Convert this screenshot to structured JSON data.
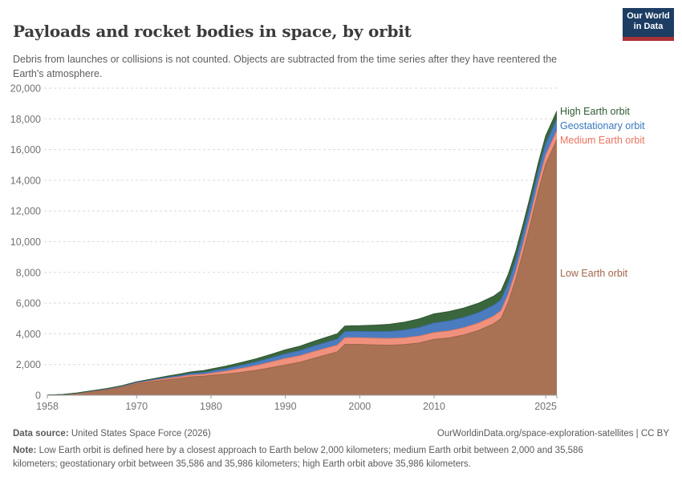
{
  "header": {
    "title": "Payloads and rocket bodies in space, by orbit",
    "subtitle": "Debris from launches or collisions is not counted. Objects are subtracted from the time series after they have reentered the Earth's atmosphere.",
    "logo": {
      "line1": "Our World",
      "line2": "in Data",
      "background_color": "#1d3d63",
      "bar_color": "#a93236"
    }
  },
  "footer": {
    "source_label": "Data source:",
    "source_text": " United States Space Force (2026)",
    "attribution": "OurWorldinData.org/space-exploration-satellites | CC BY",
    "note_label": "Note:",
    "note_text": " Low Earth orbit is defined here by a closest approach to Earth below 2,000 kilometers; medium Earth orbit between 2,000 and 35,586 kilometers; geostationary orbit between 35,586 and 35,986 kilometers; high Earth orbit above 35,986 kilometers."
  },
  "chart_data": {
    "type": "area",
    "stacked": true,
    "title": "Payloads and rocket bodies in space, by orbit",
    "xlabel": "",
    "ylabel": "",
    "xlim": [
      1958,
      2026.5
    ],
    "ylim": [
      0,
      20000
    ],
    "grid": "dashed-horizontal",
    "legend_position": "right-of-plot",
    "x": [
      1958,
      1960,
      1962,
      1964,
      1966,
      1968,
      1970,
      1972,
      1974,
      1976,
      1977,
      1978,
      1979,
      1980,
      1982,
      1984,
      1986,
      1988,
      1990,
      1992,
      1994,
      1996,
      1997,
      1998,
      1999,
      2000,
      2002,
      2004,
      2006,
      2008,
      2010,
      2012,
      2014,
      2016,
      2018,
      2019,
      2020,
      2021,
      2022,
      2023,
      2024,
      2025,
      2026.5
    ],
    "series": [
      {
        "name": "Low Earth orbit",
        "color": "#A97255",
        "edge_color": "#9A6548",
        "label_color": "#A2654C",
        "values": [
          10,
          35,
          125,
          235,
          360,
          520,
          740,
          870,
          1000,
          1110,
          1180,
          1220,
          1240,
          1300,
          1380,
          1490,
          1620,
          1790,
          1970,
          2150,
          2430,
          2700,
          2830,
          3310,
          3315,
          3310,
          3280,
          3260,
          3300,
          3410,
          3640,
          3735,
          3930,
          4225,
          4655,
          5000,
          6095,
          7590,
          9380,
          11275,
          13265,
          15055,
          16645
        ]
      },
      {
        "name": "Medium Earth orbit",
        "color": "#F0917E",
        "edge_color": "#E87B61",
        "label_color": "#EC7360",
        "values": [
          0,
          5,
          10,
          25,
          40,
          50,
          60,
          72,
          84,
          96,
          102,
          108,
          114,
          120,
          180,
          240,
          300,
          360,
          420,
          425,
          430,
          430,
          430,
          430,
          430,
          430,
          432,
          434,
          436,
          438,
          440,
          450,
          460,
          475,
          495,
          505,
          515,
          525,
          540,
          550,
          560,
          570,
          580
        ]
      },
      {
        "name": "Geostationary orbit",
        "color": "#4C7CC0",
        "edge_color": "#3D6FB3",
        "label_color": "#3877BF",
        "values": [
          0,
          0,
          5,
          10,
          15,
          22,
          30,
          50,
          68,
          90,
          100,
          110,
          120,
          140,
          170,
          200,
          235,
          268,
          300,
          330,
          360,
          385,
          392,
          400,
          405,
          410,
          430,
          460,
          500,
          560,
          620,
          650,
          670,
          685,
          700,
          705,
          710,
          715,
          720,
          725,
          730,
          735,
          740
        ]
      },
      {
        "name": "High Earth orbit",
        "color": "#3A663E",
        "edge_color": "#2F5630",
        "label_color": "#2F5A33",
        "values": [
          0,
          5,
          10,
          20,
          25,
          32,
          40,
          60,
          78,
          100,
          112,
          124,
          132,
          140,
          164,
          188,
          212,
          236,
          270,
          295,
          320,
          340,
          350,
          360,
          370,
          380,
          420,
          470,
          520,
          570,
          600,
          615,
          620,
          615,
          600,
          590,
          580,
          570,
          560,
          550,
          545,
          540,
          535
        ]
      }
    ],
    "yticks": [
      {
        "v": 0,
        "label": "0"
      },
      {
        "v": 2000,
        "label": "2,000"
      },
      {
        "v": 4000,
        "label": "4,000"
      },
      {
        "v": 6000,
        "label": "6,000"
      },
      {
        "v": 8000,
        "label": "8,000"
      },
      {
        "v": 10000,
        "label": "10,000"
      },
      {
        "v": 12000,
        "label": "12,000"
      },
      {
        "v": 14000,
        "label": "14,000"
      },
      {
        "v": 16000,
        "label": "16,000"
      },
      {
        "v": 18000,
        "label": "18,000"
      },
      {
        "v": 20000,
        "label": "20,000"
      }
    ],
    "xticks": [
      {
        "v": 1958,
        "label": "1958"
      },
      {
        "v": 1970,
        "label": "1970"
      },
      {
        "v": 1980,
        "label": "1980"
      },
      {
        "v": 1990,
        "label": "1990"
      },
      {
        "v": 2000,
        "label": "2000"
      },
      {
        "v": 2010,
        "label": "2010"
      },
      {
        "v": 2025,
        "label": "2025"
      },
      {
        "v": 2026.5,
        "label": ""
      }
    ]
  }
}
